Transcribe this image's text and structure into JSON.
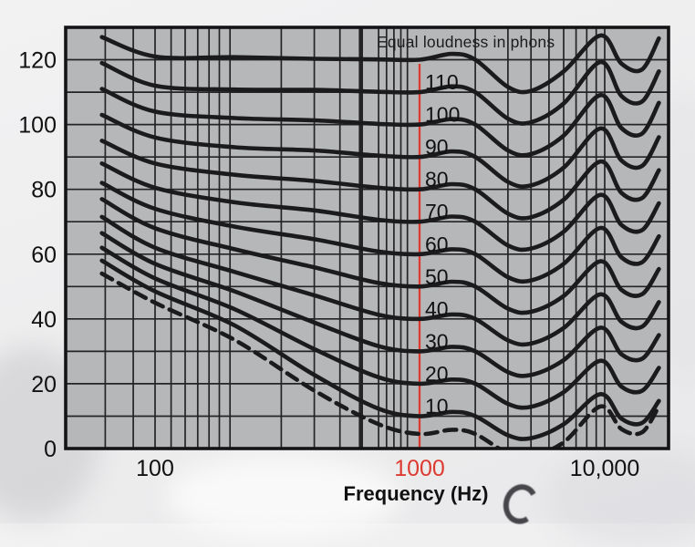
{
  "figure": {
    "title": "Equal loudness in phons",
    "xlabel": "Frequency (Hz)",
    "colors": {
      "highlight_red": "#dd3a30",
      "curve": "#1b1b1d",
      "plot_bg": "#b6b7b9",
      "grid": "#242426",
      "border": "#141416",
      "text": "#111111",
      "page_bg": "#efeff0"
    }
  },
  "chart_data": {
    "type": "line",
    "title": "Equal loudness in phons",
    "xlabel": "Frequency (Hz)",
    "ylabel": "",
    "x_scale": "log",
    "x_range_hz": [
      40,
      20000
    ],
    "y_range_db": [
      0,
      130
    ],
    "grid": true,
    "legend_position": "none",
    "x_ticks": [
      {
        "hz": 100,
        "label": "100",
        "highlight": false
      },
      {
        "hz": 1000,
        "label": "1000",
        "highlight": true
      },
      {
        "hz": 10000,
        "label": "10,000",
        "highlight": false
      }
    ],
    "y_ticks": [
      0,
      20,
      40,
      60,
      80,
      100,
      120
    ],
    "y_grid_step_db": 10,
    "highlight_line_hz": 1000,
    "gridline_freqs_hz": [
      60,
      80,
      100,
      115,
      130,
      145,
      160,
      175,
      192,
      300,
      400,
      500,
      600,
      700,
      750,
      800,
      850,
      900,
      2000,
      3000,
      4000,
      5000,
      6000,
      7000,
      8000,
      9000,
      10000
    ],
    "bold_gridline_hz": 600,
    "frequencies_hz": [
      58,
      100,
      200,
      400,
      700,
      1000,
      1500,
      2000,
      3000,
      4000,
      6000,
      9500,
      12000,
      15000,
      18000
    ],
    "series": [
      {
        "name": "120",
        "phon": 120,
        "labeled": false,
        "style": "solid",
        "values": [
          127,
          121,
          120.8,
          120.3,
          120.1,
          120,
          121.8,
          120,
          111.6,
          110.4,
          116.4,
          127.5,
          118.8,
          117,
          126.6
        ]
      },
      {
        "name": "110",
        "phon": 110,
        "labeled": true,
        "style": "solid",
        "values": [
          119,
          112,
          110.8,
          110.7,
          110.1,
          110,
          111.8,
          110,
          101.8,
          100.7,
          106.5,
          119.3,
          108.8,
          107.1,
          116.4
        ]
      },
      {
        "name": "100",
        "phon": 100,
        "labeled": true,
        "style": "solid",
        "values": [
          111,
          104,
          102,
          101.3,
          100.2,
          100,
          101.7,
          100,
          92,
          90.9,
          96.6,
          109.1,
          98.9,
          97.2,
          106.7
        ]
      },
      {
        "name": "90",
        "phon": 90,
        "labeled": true,
        "style": "solid",
        "values": [
          103,
          96,
          93,
          92,
          90.4,
          90,
          91.7,
          90,
          82.3,
          81.2,
          86.7,
          98.8,
          88.9,
          87.2,
          96.1
        ]
      },
      {
        "name": "80",
        "phon": 80,
        "labeled": true,
        "style": "solid",
        "values": [
          95,
          88,
          84.5,
          82.6,
          80.5,
          80,
          81.6,
          80,
          72.5,
          71.4,
          76.8,
          88.6,
          78.9,
          77.3,
          85.9
        ]
      },
      {
        "name": "70",
        "phon": 70,
        "labeled": true,
        "style": "solid",
        "values": [
          88,
          80.5,
          76,
          73.5,
          70.6,
          70,
          71.6,
          70,
          62.7,
          61.7,
          66.9,
          78.3,
          69,
          67.4,
          75.7
        ]
      },
      {
        "name": "60",
        "phon": 60,
        "labeled": true,
        "style": "solid",
        "values": [
          82,
          74,
          68.5,
          64.6,
          60.8,
          60,
          61.5,
          60,
          52.9,
          51.9,
          57,
          68.1,
          59,
          57.5,
          65.5
        ]
      },
      {
        "name": "50",
        "phon": 50,
        "labeled": true,
        "style": "solid",
        "values": [
          77,
          68,
          61.5,
          55.9,
          51.1,
          50,
          51.5,
          50,
          43.2,
          42.2,
          47.1,
          57.8,
          49,
          47.6,
          55.4
        ]
      },
      {
        "name": "40",
        "phon": 40,
        "labeled": true,
        "style": "solid",
        "values": [
          71.5,
          62,
          54.5,
          47.3,
          41.3,
          40,
          41.4,
          40,
          33.4,
          32.4,
          37.2,
          47.6,
          39.1,
          37.6,
          45.2
        ]
      },
      {
        "name": "30",
        "phon": 30,
        "labeled": true,
        "style": "solid",
        "values": [
          66.5,
          57,
          48.5,
          38.9,
          31.6,
          30,
          31.4,
          30,
          23.6,
          22.7,
          27.3,
          37.3,
          29.1,
          27.7,
          35
        ]
      },
      {
        "name": "20",
        "phon": 20,
        "labeled": true,
        "style": "solid",
        "values": [
          62,
          52.5,
          43,
          30.7,
          22,
          20,
          21.3,
          20,
          13.8,
          12.9,
          17.4,
          27.1,
          19.1,
          17.8,
          24.9
        ]
      },
      {
        "name": "10",
        "phon": 10,
        "labeled": true,
        "style": "solid",
        "values": [
          58,
          48.5,
          38,
          22.7,
          12.3,
          10,
          11.3,
          10,
          4.1,
          3.2,
          7.5,
          16.8,
          9.2,
          7.9,
          14.7
        ]
      },
      {
        "name": "threshold-of-hearing",
        "phon": null,
        "labeled": false,
        "style": "dashed",
        "values": [
          54,
          45,
          33.5,
          17.9,
          7.5,
          4.5,
          5.8,
          4.5,
          -1.5,
          -2.3,
          1.9,
          13,
          6,
          5,
          13
        ]
      }
    ]
  }
}
